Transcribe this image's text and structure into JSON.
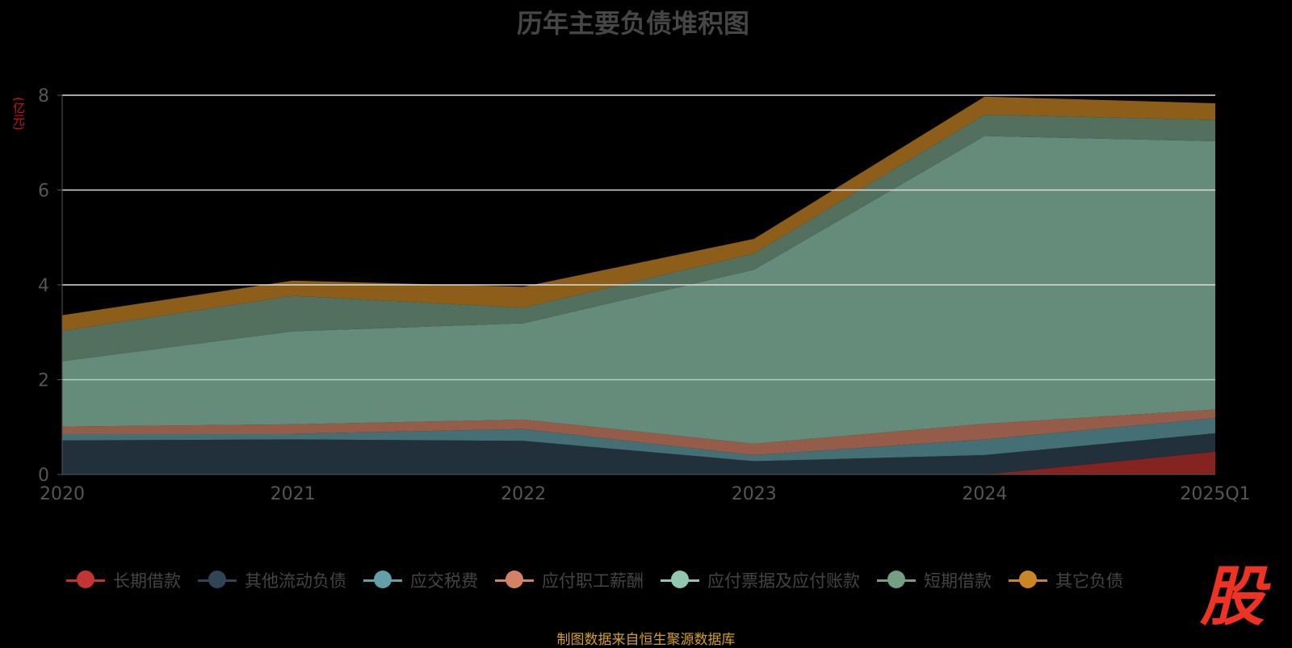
{
  "chart_data": {
    "type": "area",
    "stacked": true,
    "title": "历年主要负债堆积图",
    "ylabel": "(亿元)",
    "xlabel": "",
    "categories": [
      "2020",
      "2021",
      "2022",
      "2023",
      "2024",
      "2025Q1"
    ],
    "ylim": [
      0,
      8
    ],
    "yticks": [
      "0",
      "2",
      "4",
      "6",
      "8"
    ],
    "grid": true,
    "legend_position": "bottom",
    "series": [
      {
        "name": "长期借款",
        "color": "#c23531",
        "fill": "#84231f",
        "values": [
          0,
          0,
          0,
          0,
          0,
          0.48
        ]
      },
      {
        "name": "其他流动负债",
        "color": "#2f4554",
        "fill": "#21303b",
        "values": [
          0.72,
          0.74,
          0.71,
          0.28,
          0.41,
          0.39
        ]
      },
      {
        "name": "应交税费",
        "color": "#61a0a8",
        "fill": "#436f75",
        "values": [
          0.14,
          0.12,
          0.25,
          0.13,
          0.33,
          0.32
        ]
      },
      {
        "name": "应付职工薪酬",
        "color": "#d48265",
        "fill": "#955d49",
        "values": [
          0.15,
          0.2,
          0.2,
          0.24,
          0.33,
          0.18
        ]
      },
      {
        "name": "应付票据及应付账款",
        "color": "#91c7ae",
        "fill": "#658c7a",
        "values": [
          1.38,
          1.96,
          2.03,
          3.67,
          6.07,
          5.66
        ]
      },
      {
        "name": "短期借款",
        "color": "#749f83",
        "fill": "#52705d",
        "values": [
          0.64,
          0.75,
          0.33,
          0.34,
          0.45,
          0.45
        ]
      },
      {
        "name": "其它负债",
        "color": "#ca8622",
        "fill": "#8d5e1a",
        "values": [
          0.33,
          0.32,
          0.44,
          0.31,
          0.38,
          0.35
        ]
      }
    ]
  },
  "source": "制图数据来自恒生聚源数据库",
  "logo_text": "股"
}
